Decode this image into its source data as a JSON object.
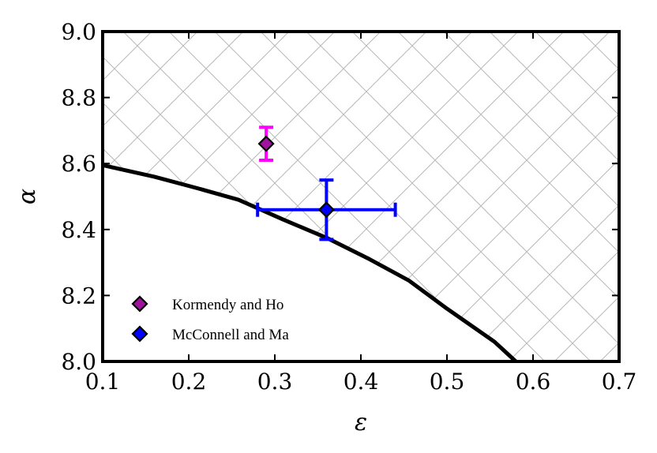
{
  "chart_data": {
    "type": "scatter",
    "title": "",
    "xlabel": "ε",
    "ylabel": "α",
    "xlim": [
      0.1,
      0.7
    ],
    "ylim": [
      8.0,
      9.0
    ],
    "x_ticks": [
      "0.1",
      "0.2",
      "0.3",
      "0.4",
      "0.5",
      "0.6",
      "0.7"
    ],
    "y_ticks": [
      "8.0",
      "8.2",
      "8.4",
      "8.6",
      "8.8",
      "9.0"
    ],
    "x_tick_values": [
      0.1,
      0.2,
      0.3,
      0.4,
      0.5,
      0.6,
      0.7
    ],
    "y_tick_values": [
      8.0,
      8.2,
      8.4,
      8.6,
      8.8,
      9.0
    ],
    "boundary_curve": {
      "color": "#000000",
      "x": [
        0.1,
        0.16,
        0.21,
        0.258,
        0.31,
        0.36,
        0.41,
        0.456,
        0.5,
        0.555,
        0.58
      ],
      "y": [
        8.595,
        8.56,
        8.525,
        8.49,
        8.43,
        8.375,
        8.31,
        8.245,
        8.16,
        8.06,
        8.0
      ]
    },
    "hatched_region": "above boundary curve",
    "series": [
      {
        "name": "Kormendy and Ho",
        "x": 0.29,
        "y": 8.66,
        "yerr": 0.05,
        "xerr": 0,
        "marker_color": "#a0139e",
        "error_color": "#ff00ff"
      },
      {
        "name": "McConnell and Ma",
        "x": 0.36,
        "y": 8.46,
        "yerr": 0.09,
        "xerr_low": 0.08,
        "xerr_high": 0.08,
        "marker_color": "#0000ff",
        "error_color": "#0000ff"
      }
    ],
    "legend_position": "lower-left"
  }
}
